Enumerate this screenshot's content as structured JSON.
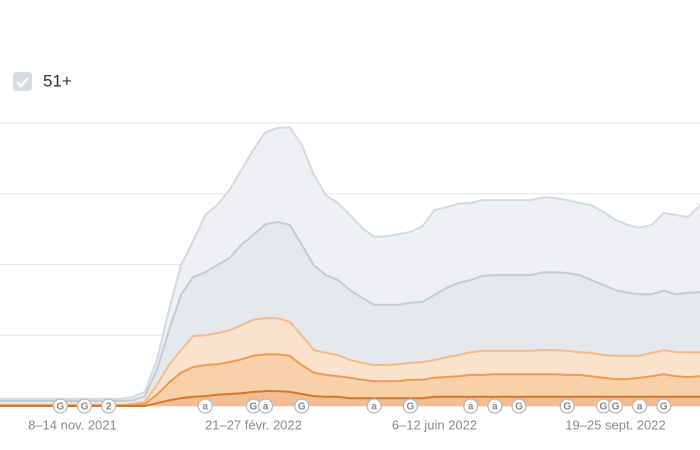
{
  "chart_data": {
    "type": "area",
    "filter_label": "51+",
    "categories": [
      null,
      null,
      null,
      null,
      null,
      null,
      "8–14 nov. 2021",
      null,
      null,
      null,
      null,
      null,
      null,
      null,
      null,
      null,
      null,
      null,
      null,
      null,
      null,
      "21–27 févr. 2022",
      null,
      null,
      null,
      null,
      null,
      null,
      null,
      null,
      null,
      null,
      null,
      null,
      null,
      null,
      "6–12 juin 2022",
      null,
      null,
      null,
      null,
      null,
      null,
      null,
      null,
      null,
      null,
      null,
      null,
      null,
      null,
      "19–25 sept. 2022",
      null,
      null,
      null,
      null,
      null,
      null,
      null
    ],
    "series": [
      {
        "color": "#d3d9e1",
        "fill": "#eef0f4",
        "values": [
          0.1,
          0.1,
          0.1,
          0.1,
          0.1,
          0.1,
          0.1,
          0.1,
          0.1,
          0.1,
          0.1,
          0.13,
          0.2,
          0.65,
          1.36,
          1.99,
          2.33,
          2.7,
          2.84,
          3.05,
          3.34,
          3.62,
          3.87,
          3.93,
          3.94,
          3.69,
          3.27,
          2.98,
          2.87,
          2.7,
          2.52,
          2.39,
          2.4,
          2.43,
          2.46,
          2.54,
          2.77,
          2.81,
          2.86,
          2.87,
          2.91,
          2.91,
          2.91,
          2.91,
          2.91,
          2.95,
          2.94,
          2.91,
          2.87,
          2.84,
          2.74,
          2.63,
          2.56,
          2.52,
          2.56,
          2.73,
          2.7,
          2.67,
          2.84
        ]
      },
      {
        "color": "#c3cad4",
        "fill": "#e5e8ed",
        "values": [
          0.07,
          0.07,
          0.07,
          0.07,
          0.07,
          0.07,
          0.07,
          0.07,
          0.07,
          0.07,
          0.07,
          0.08,
          0.14,
          0.51,
          1.07,
          1.57,
          1.82,
          1.89,
          1.99,
          2.09,
          2.28,
          2.42,
          2.57,
          2.6,
          2.56,
          2.28,
          1.99,
          1.85,
          1.78,
          1.64,
          1.53,
          1.43,
          1.43,
          1.43,
          1.46,
          1.47,
          1.57,
          1.67,
          1.74,
          1.78,
          1.84,
          1.85,
          1.85,
          1.85,
          1.85,
          1.89,
          1.89,
          1.88,
          1.85,
          1.78,
          1.71,
          1.64,
          1.6,
          1.58,
          1.58,
          1.63,
          1.58,
          1.6,
          1.61
        ]
      },
      {
        "color": "#f6b987",
        "fill": "#fbe2cc",
        "values": [
          0.01,
          0.01,
          0.01,
          0.01,
          0.01,
          0.01,
          0.01,
          0.01,
          0.01,
          0.01,
          0.01,
          0.03,
          0.06,
          0.3,
          0.58,
          0.79,
          0.99,
          1.0,
          1.03,
          1.07,
          1.14,
          1.22,
          1.24,
          1.24,
          1.19,
          1.0,
          0.79,
          0.75,
          0.72,
          0.65,
          0.61,
          0.58,
          0.58,
          0.59,
          0.61,
          0.62,
          0.65,
          0.69,
          0.72,
          0.76,
          0.78,
          0.78,
          0.78,
          0.78,
          0.78,
          0.79,
          0.79,
          0.78,
          0.76,
          0.75,
          0.72,
          0.71,
          0.71,
          0.71,
          0.75,
          0.79,
          0.76,
          0.76,
          0.76
        ]
      },
      {
        "color": "#ef9a4c",
        "fill": "#f8d0a9",
        "values": [
          0.01,
          0.01,
          0.01,
          0.01,
          0.01,
          0.01,
          0.01,
          0.01,
          0.01,
          0.01,
          0.01,
          0.01,
          0.03,
          0.16,
          0.33,
          0.47,
          0.55,
          0.58,
          0.59,
          0.62,
          0.66,
          0.71,
          0.73,
          0.73,
          0.71,
          0.58,
          0.47,
          0.44,
          0.42,
          0.4,
          0.37,
          0.35,
          0.35,
          0.35,
          0.37,
          0.37,
          0.4,
          0.41,
          0.42,
          0.44,
          0.44,
          0.45,
          0.45,
          0.45,
          0.45,
          0.45,
          0.45,
          0.44,
          0.44,
          0.42,
          0.4,
          0.38,
          0.38,
          0.4,
          0.42,
          0.45,
          0.42,
          0.41,
          0.42
        ]
      },
      {
        "color": "#d5762c",
        "fill": "#f2be91",
        "values": [
          0,
          0,
          0,
          0,
          0,
          0,
          0,
          0,
          0,
          0,
          0,
          0,
          0,
          0.04,
          0.08,
          0.11,
          0.13,
          0.14,
          0.16,
          0.17,
          0.18,
          0.2,
          0.21,
          0.21,
          0.2,
          0.17,
          0.14,
          0.13,
          0.13,
          0.11,
          0.11,
          0.11,
          0.11,
          0.11,
          0.11,
          0.11,
          0.13,
          0.13,
          0.13,
          0.13,
          0.13,
          0.13,
          0.13,
          0.13,
          0.13,
          0.13,
          0.13,
          0.13,
          0.13,
          0.13,
          0.13,
          0.13,
          0.13,
          0.13,
          0.13,
          0.13,
          0.13,
          0.13,
          0.13
        ]
      }
    ],
    "ylim": [
      0,
      4
    ],
    "yticks": [
      0,
      1,
      2,
      3,
      4
    ],
    "grid": true,
    "annotations": [
      {
        "label": "G",
        "category": 5
      },
      {
        "label": "G",
        "category": 7
      },
      {
        "label": "2",
        "category": 9
      },
      {
        "label": "a",
        "category": 17
      },
      {
        "label": "G",
        "category": 21
      },
      {
        "label": "a",
        "category": 22
      },
      {
        "label": "G",
        "category": 25
      },
      {
        "label": "a",
        "category": 31
      },
      {
        "label": "G",
        "category": 34
      },
      {
        "label": "a",
        "category": 39
      },
      {
        "label": "a",
        "category": 41
      },
      {
        "label": "G",
        "category": 43
      },
      {
        "label": "G",
        "category": 47
      },
      {
        "label": "G",
        "category": 50
      },
      {
        "label": "G",
        "category": 51
      },
      {
        "label": "a",
        "category": 53
      },
      {
        "label": "G",
        "category": 55
      }
    ]
  }
}
